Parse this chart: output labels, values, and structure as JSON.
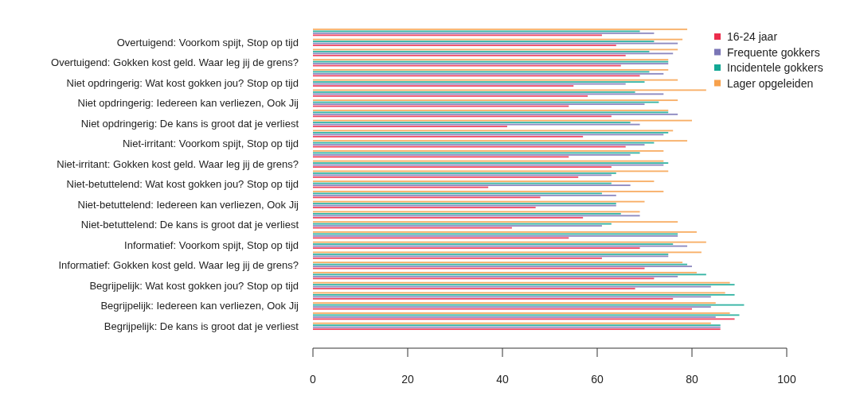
{
  "chart_data": {
    "type": "bar",
    "orientation": "horizontal",
    "categories": [
      null,
      "Overtuigend: Voorkom spijt, Stop op tijd",
      null,
      "Overtuigend: Gokken kost geld. Waar leg jij de grens?",
      null,
      "Niet opdringerig: Wat kost gokken jou? Stop op tijd",
      null,
      "Niet opdringerig: Iedereen kan verliezen, Ook Jij",
      null,
      "Niet opdringerig: De kans is groot dat je verliest",
      null,
      "Niet-irritant: Voorkom spijt, Stop op tijd",
      null,
      "Niet-irritant: Gokken kost geld. Waar leg jij de grens?",
      null,
      "Niet-betuttelend: Wat kost gokken jou? Stop op tijd",
      null,
      "Niet-betuttelend: Iedereen kan verliezen, Ook Jij",
      null,
      "Niet-betuttelend: De kans is groot dat je verliest",
      null,
      "Informatief: Voorkom spijt, Stop op tijd",
      null,
      "Informatief: Gokken kost geld. Waar leg jij de grens?",
      null,
      "Begrijpelijk: Wat kost gokken jou? Stop op tijd",
      null,
      "Begrijpelijk: Iedereen kan verliezen, Ook Jij",
      null,
      "Begrijpelijk: De kans is groot dat je verliest"
    ],
    "series": [
      {
        "name": "16-24 jaar",
        "color": "#ec2d4c",
        "values": [
          61,
          64,
          66,
          65,
          69,
          55,
          58,
          54,
          63,
          41,
          57,
          66,
          54,
          63,
          56,
          37,
          48,
          47,
          57,
          42,
          54,
          69,
          61,
          70,
          72,
          68,
          76,
          80,
          89,
          86
        ]
      },
      {
        "name": "Frequente gokkers",
        "color": "#7a76b6",
        "values": [
          72,
          77,
          76,
          75,
          74,
          66,
          74,
          70,
          77,
          69,
          74,
          70,
          67,
          74,
          63,
          67,
          64,
          64,
          69,
          61,
          77,
          79,
          75,
          80,
          77,
          84,
          84,
          84,
          85,
          86
        ]
      },
      {
        "name": "Incidentele gokkers",
        "color": "#14a895",
        "values": [
          69,
          72,
          71,
          75,
          71,
          70,
          68,
          73,
          75,
          67,
          75,
          72,
          69,
          75,
          64,
          63,
          61,
          64,
          65,
          63,
          77,
          76,
          75,
          79,
          83,
          89,
          89,
          91,
          90,
          86
        ]
      },
      {
        "name": "Lager opgeleiden",
        "color": "#f7a14c",
        "values": [
          79,
          78,
          77,
          75,
          75,
          77,
          83,
          77,
          75,
          80,
          76,
          79,
          74,
          74,
          75,
          72,
          74,
          70,
          69,
          77,
          81,
          83,
          82,
          78,
          81,
          88,
          87,
          85,
          88,
          84
        ]
      }
    ],
    "xlim": [
      0,
      100
    ],
    "xticks": [
      0,
      20,
      40,
      60,
      80,
      100
    ],
    "grid": false,
    "legend": "top right",
    "marker": "square"
  }
}
